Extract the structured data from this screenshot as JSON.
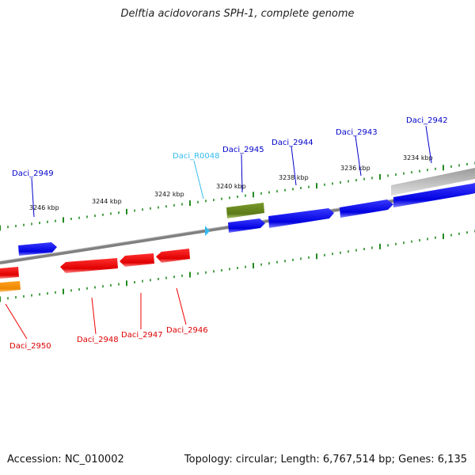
{
  "title": "Delftia acidovorans SPH-1, complete genome",
  "footer": {
    "accession": "Accession: NC_010002",
    "topology": "Topology: circular; Length: 6,767,514 bp; Genes: 6,135"
  },
  "colors": {
    "forward_gene": "#0000ee",
    "reverse_gene": "#ee0000",
    "rna": "#33bbee",
    "pseudo": "#6b8e23",
    "other": "#ff8c00",
    "tick": "#228b22",
    "backbone": "#888888"
  },
  "ruler_labels": [
    "3234 kbp",
    "3236 kbp",
    "3238 kbp",
    "3240 kbp",
    "3242 kbp",
    "3244 kbp",
    "3246 kbp"
  ],
  "gene_labels": [
    {
      "name": "Daci_2942",
      "strand": "forward"
    },
    {
      "name": "Daci_2943",
      "strand": "forward"
    },
    {
      "name": "Daci_2944",
      "strand": "forward"
    },
    {
      "name": "Daci_2945",
      "strand": "forward"
    },
    {
      "name": "Daci_R0048",
      "strand": "rna"
    },
    {
      "name": "Daci_2949",
      "strand": "forward"
    },
    {
      "name": "Daci_2946",
      "strand": "reverse"
    },
    {
      "name": "Daci_2947",
      "strand": "reverse"
    },
    {
      "name": "Daci_2948",
      "strand": "reverse"
    },
    {
      "name": "Daci_2950",
      "strand": "reverse"
    }
  ]
}
